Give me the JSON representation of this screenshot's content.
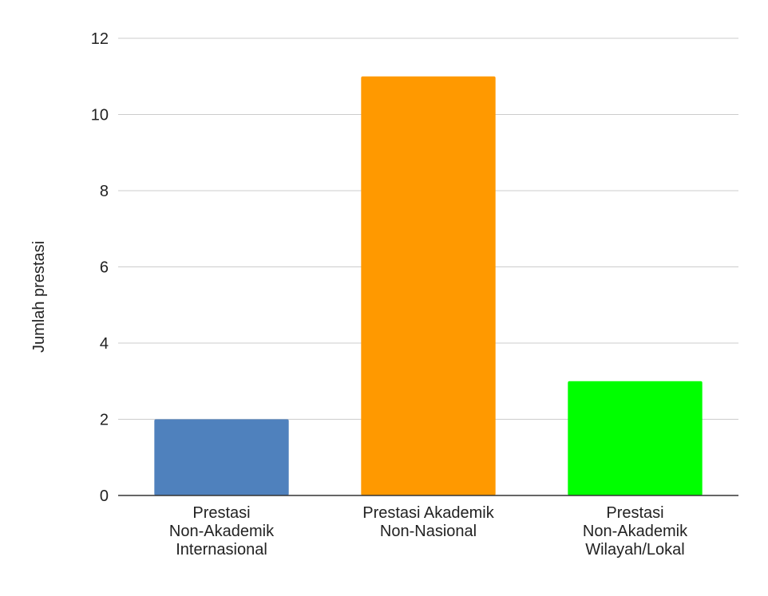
{
  "chart_data": {
    "type": "bar",
    "title": "",
    "xlabel": "",
    "ylabel": "Jumlah prestasi",
    "categories": [
      [
        "Prestasi",
        "Non-Akademik",
        "Internasional"
      ],
      [
        "Prestasi Akademik",
        "Non-Nasional"
      ],
      [
        "Prestasi",
        "Non-Akademik",
        "Wilayah/Lokal"
      ]
    ],
    "values": [
      2,
      11,
      3
    ],
    "colors": [
      "#4f81bd",
      "#ff9900",
      "#00ff00"
    ],
    "ylim": [
      0,
      12
    ],
    "yticks": [
      0,
      2,
      4,
      6,
      8,
      10,
      12
    ],
    "grid": true,
    "legend": "none"
  }
}
